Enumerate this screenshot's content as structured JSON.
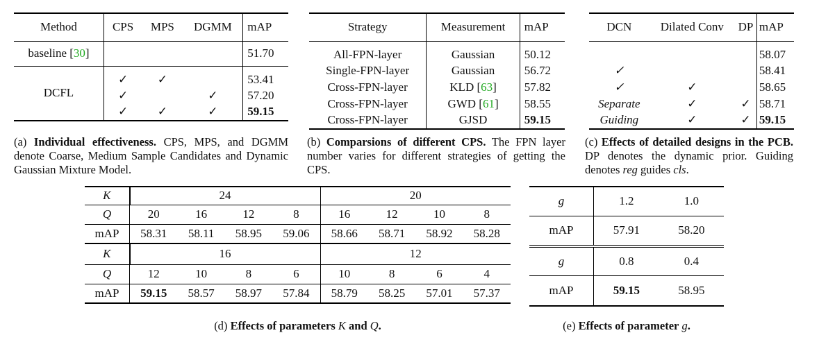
{
  "table_a": {
    "headers": [
      "Method",
      "CPS",
      "MPS",
      "DGMM",
      "mAP"
    ],
    "baseline_label": "baseline [",
    "baseline_ref": "30",
    "baseline_close": "]",
    "baseline_map": "51.70",
    "dcfl_label": "DCFL",
    "rows": [
      {
        "cps": "✓",
        "mps": "✓",
        "dgmm": "",
        "map": "53.41"
      },
      {
        "cps": "✓",
        "mps": "",
        "dgmm": "✓",
        "map": "57.20"
      },
      {
        "cps": "✓",
        "mps": "✓",
        "dgmm": "✓",
        "map": "59.15"
      }
    ],
    "caption_prefix": "(a) ",
    "caption_bold": "Individual effectiveness.",
    "caption_text": " CPS, MPS, and DGMM denote Coarse, Medium Sample Candidates and Dynamic Gaussian Mixture Model."
  },
  "table_b": {
    "headers": [
      "Strategy",
      "Measurement",
      "mAP"
    ],
    "rows": [
      {
        "strategy": "All-FPN-layer",
        "measure": "Gaussian",
        "ref": "",
        "map": "50.12"
      },
      {
        "strategy": "Single-FPN-layer",
        "measure": "Gaussian",
        "ref": "",
        "map": "56.72"
      },
      {
        "strategy": "Cross-FPN-layer",
        "measure": "KLD [",
        "ref": "63",
        "map": "57.82"
      },
      {
        "strategy": "Cross-FPN-layer",
        "measure": "GWD [",
        "ref": "61",
        "map": "58.55"
      },
      {
        "strategy": "Cross-FPN-layer",
        "measure": "GJSD",
        "ref": "",
        "map": "59.15"
      }
    ],
    "caption_prefix": "(b) ",
    "caption_bold": "Comparsions of different CPS.",
    "caption_text": " The FPN layer number varies for different strategies of getting the CPS."
  },
  "table_c": {
    "headers": [
      "DCN",
      "Dilated Conv",
      "DP",
      "mAP"
    ],
    "rows": [
      {
        "dcn": "",
        "dil": "",
        "dp": "",
        "map": "58.07"
      },
      {
        "dcn": "✓",
        "dil": "",
        "dp": "",
        "map": "58.41"
      },
      {
        "dcn": "✓",
        "dil": "✓",
        "dp": "",
        "map": "58.65"
      },
      {
        "dcn": "Separate",
        "dil": "✓",
        "dp": "✓",
        "map": "58.71"
      },
      {
        "dcn": "Guiding",
        "dil": "✓",
        "dp": "✓",
        "map": "59.15"
      }
    ],
    "caption_prefix": "(c) ",
    "caption_bold": "Effects of detailed designs in the PCB.",
    "caption_text1": " DP denotes the dynamic prior. Guiding denotes ",
    "caption_it1": "reg",
    "caption_text2": " guides ",
    "caption_it2": "cls",
    "caption_text3": "."
  },
  "table_d": {
    "k_label": "K",
    "q_label": "Q",
    "map_label": "mAP",
    "block1": {
      "k1": "24",
      "k2": "20",
      "q": [
        "20",
        "16",
        "12",
        "8",
        "16",
        "12",
        "10",
        "8"
      ],
      "map": [
        "58.31",
        "58.11",
        "58.95",
        "59.06",
        "58.66",
        "58.71",
        "58.92",
        "58.28"
      ]
    },
    "block2": {
      "k1": "16",
      "k2": "12",
      "q": [
        "12",
        "10",
        "8",
        "6",
        "10",
        "8",
        "6",
        "4"
      ],
      "map": [
        "59.15",
        "58.57",
        "58.97",
        "57.84",
        "58.79",
        "58.25",
        "57.01",
        "57.37"
      ]
    },
    "caption_prefix": "(d) ",
    "caption_bold": "Effects of parameters",
    "caption_k": "K",
    "caption_and": "and",
    "caption_q": "Q",
    "caption_end": "."
  },
  "table_e": {
    "g_label": "g",
    "map_label": "mAP",
    "block1": {
      "g": [
        "1.2",
        "1.0"
      ],
      "map": [
        "57.91",
        "58.20"
      ]
    },
    "block2": {
      "g": [
        "0.8",
        "0.4"
      ],
      "map": [
        "59.15",
        "58.95"
      ]
    },
    "caption_prefix": "(e) ",
    "caption_bold": "Effects of parameter",
    "caption_g": "g",
    "caption_end": "."
  }
}
